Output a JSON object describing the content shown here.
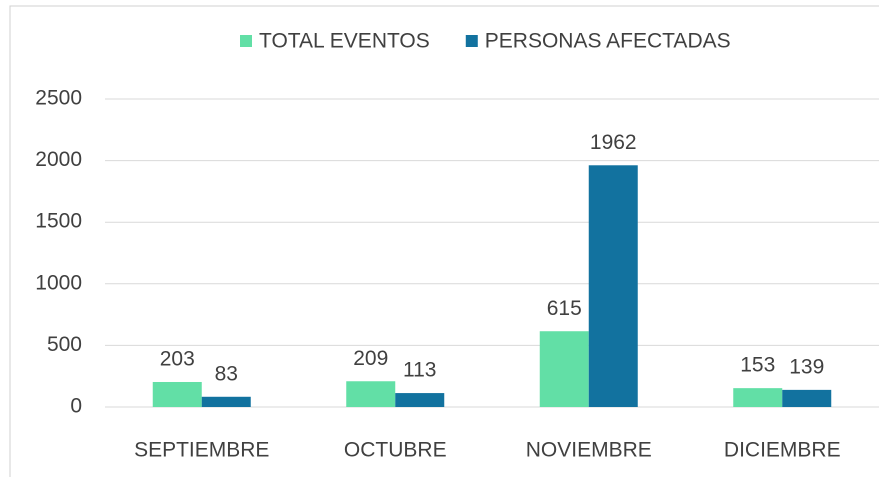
{
  "chart_data": {
    "type": "bar",
    "categories": [
      "SEPTIEMBRE",
      "OCTUBRE",
      "NOVIEMBRE",
      "DICIEMBRE"
    ],
    "series": [
      {
        "name": "TOTAL EVENTOS",
        "color": "#62dfa6",
        "values": [
          203,
          209,
          615,
          153
        ]
      },
      {
        "name": "PERSONAS AFECTADAS",
        "color": "#12729f",
        "values": [
          83,
          113,
          1962,
          139
        ]
      }
    ],
    "ylim": [
      0,
      2500
    ],
    "yticks": [
      0,
      500,
      1000,
      1500,
      2000,
      2500
    ],
    "grid": true,
    "legend": "top"
  }
}
